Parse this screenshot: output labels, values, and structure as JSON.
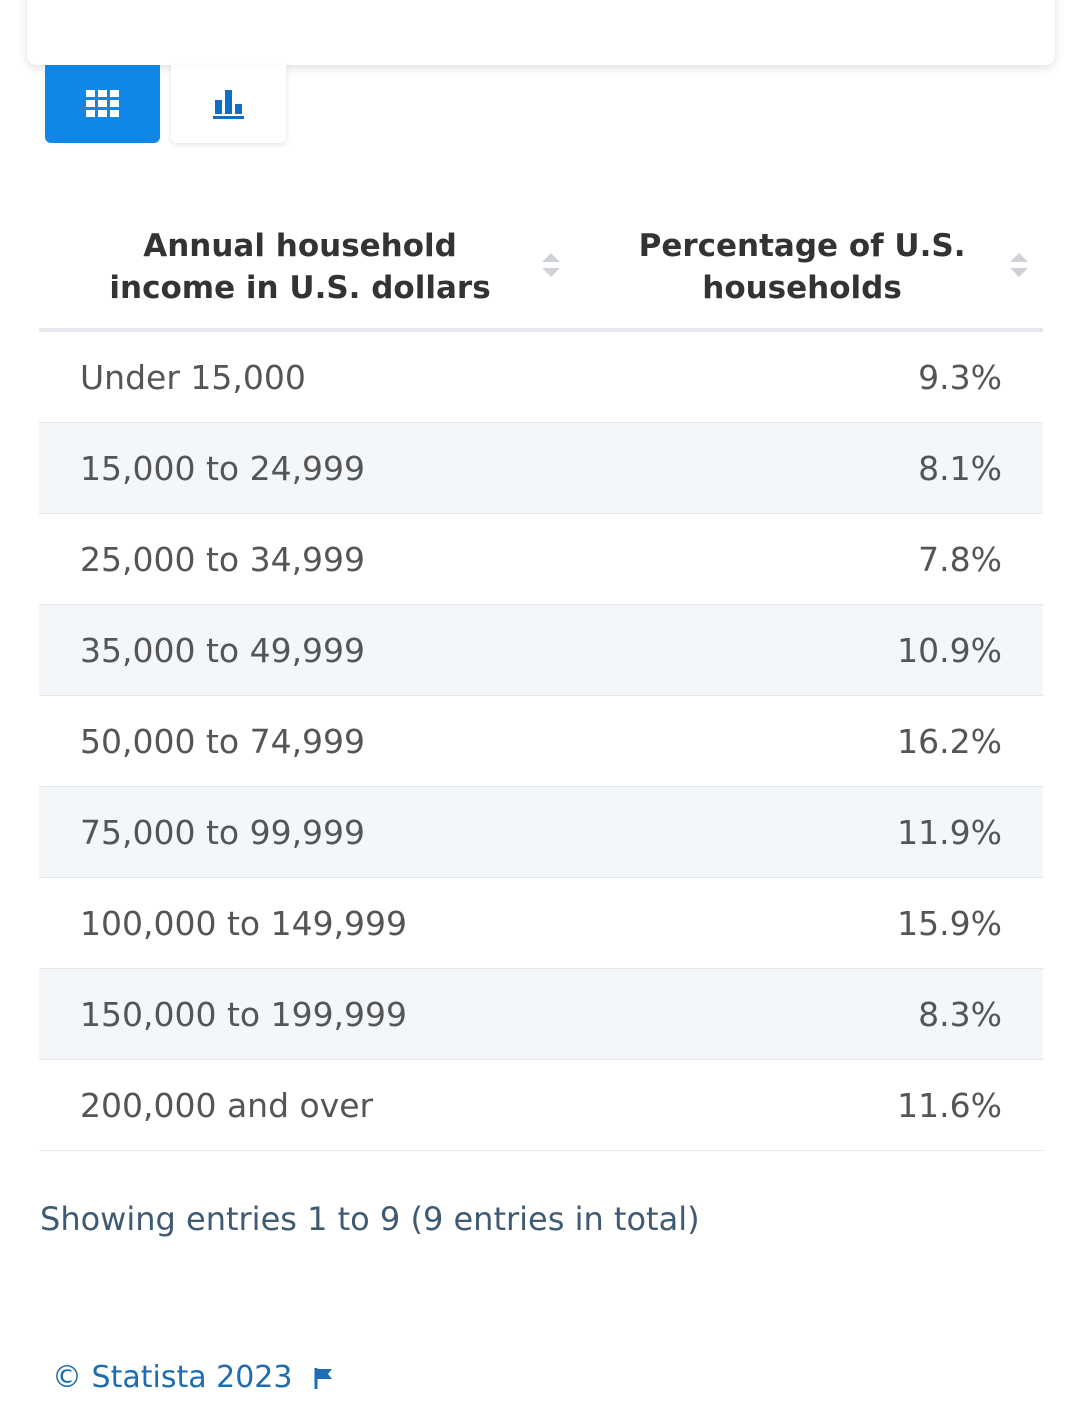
{
  "table": {
    "header": [
      "Annual household income in U.S. dollars",
      "Percentage of U.S. households"
    ],
    "rows": [
      [
        "Under 15,000",
        "9.3%"
      ],
      [
        "15,000 to 24,999",
        "8.1%"
      ],
      [
        "25,000 to 34,999",
        "7.8%"
      ],
      [
        "35,000 to 49,999",
        "10.9%"
      ],
      [
        "50,000 to 74,999",
        "16.2%"
      ],
      [
        "75,000 to 99,999",
        "11.9%"
      ],
      [
        "100,000 to 149,999",
        "15.9%"
      ],
      [
        "150,000 to 199,999",
        "8.3%"
      ],
      [
        "200,000 and over",
        "11.6%"
      ]
    ]
  },
  "footer": {
    "entries": "Showing entries 1 to 9 (9 entries in total)",
    "source": "© Statista 2023"
  }
}
